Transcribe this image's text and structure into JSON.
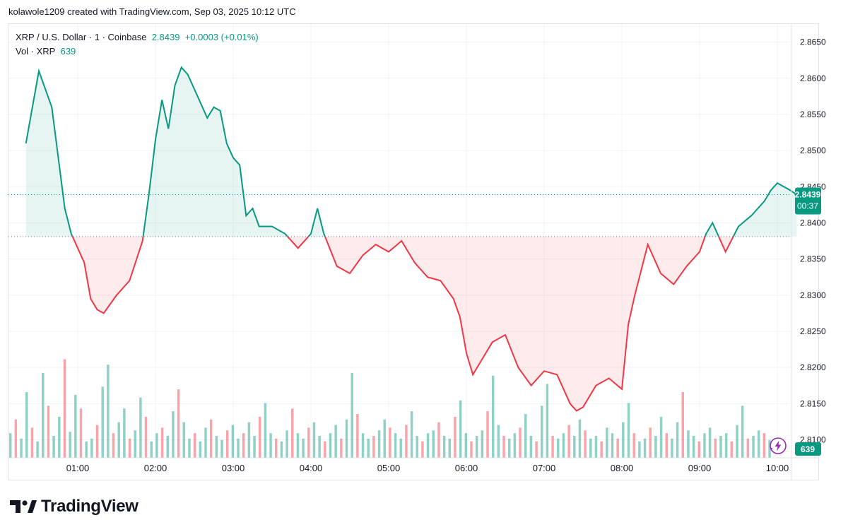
{
  "header": {
    "credit": "kolawole1209 created with TradingView.com, Sep 03, 2025 10:12 UTC"
  },
  "legend": {
    "symbol": "XRP / U.S. Dollar · 1 · Coinbase",
    "price": "2.8439",
    "change": "+0.0003 (+0.01%)",
    "vol_label": "Vol · XRP",
    "vol_value": "639"
  },
  "price_tag": {
    "value": "2.8439",
    "countdown": "00:37"
  },
  "volume_tag": {
    "value": "639"
  },
  "brand": {
    "name": "TradingView"
  },
  "colors": {
    "up": "#089981",
    "down": "#f23645",
    "grid": "#f0f3fa",
    "text": "#131722"
  },
  "chart_data": {
    "type": "area",
    "title": "XRP / U.S. Dollar · 1 · Coinbase",
    "ylim": [
      2.8075,
      2.8675
    ],
    "y_ticks": [
      "2.8100",
      "2.8150",
      "2.8200",
      "2.8250",
      "2.8300",
      "2.8350",
      "2.8400",
      "2.8450",
      "2.8500",
      "2.8550",
      "2.8600",
      "2.8650"
    ],
    "x_ticks": [
      "01:00",
      "02:00",
      "03:00",
      "04:00",
      "05:00",
      "06:00",
      "07:00",
      "08:00",
      "09:00",
      "10:00"
    ],
    "baseline": 2.8381,
    "last_price": 2.8439,
    "grid": true,
    "series": [
      {
        "name": "XRP / U.S. Dollar",
        "x": [
          "00:20",
          "00:30",
          "00:40",
          "00:45",
          "00:50",
          "00:55",
          "01:05",
          "01:10",
          "01:15",
          "01:20",
          "01:30",
          "01:40",
          "01:50",
          "01:55",
          "02:00",
          "02:05",
          "02:10",
          "02:15",
          "02:20",
          "02:25",
          "02:30",
          "02:35",
          "02:40",
          "02:45",
          "02:50",
          "02:55",
          "03:00",
          "03:05",
          "03:10",
          "03:15",
          "03:20",
          "03:30",
          "03:40",
          "03:50",
          "04:00",
          "04:05",
          "04:10",
          "04:20",
          "04:30",
          "04:40",
          "04:50",
          "05:00",
          "05:10",
          "05:20",
          "05:30",
          "05:40",
          "05:50",
          "05:55",
          "06:00",
          "06:05",
          "06:10",
          "06:20",
          "06:30",
          "06:40",
          "06:50",
          "07:00",
          "07:10",
          "07:20",
          "07:25",
          "07:30",
          "07:40",
          "07:50",
          "08:00",
          "08:05",
          "08:10",
          "08:20",
          "08:30",
          "08:40",
          "08:50",
          "09:00",
          "09:05",
          "09:10",
          "09:20",
          "09:30",
          "09:40",
          "09:45",
          "09:50",
          "09:55",
          "10:00",
          "10:05",
          "10:10",
          "10:15"
        ],
        "values": [
          2.851,
          2.861,
          2.856,
          2.849,
          2.842,
          2.8385,
          2.8345,
          2.8295,
          2.828,
          2.8275,
          2.83,
          2.832,
          2.8375,
          2.844,
          2.8515,
          2.857,
          2.853,
          2.859,
          2.8615,
          2.8605,
          2.8585,
          2.8565,
          2.8545,
          2.856,
          2.8555,
          2.851,
          2.849,
          2.848,
          2.841,
          2.842,
          2.8395,
          2.8395,
          2.8385,
          2.8365,
          2.8385,
          2.842,
          2.8385,
          2.834,
          2.833,
          2.8355,
          2.837,
          2.836,
          2.8375,
          2.8345,
          2.8325,
          2.832,
          2.8295,
          2.827,
          2.822,
          2.819,
          2.8205,
          2.8235,
          2.8245,
          2.82,
          2.8175,
          2.8195,
          2.819,
          2.815,
          2.814,
          2.8145,
          2.8175,
          2.8185,
          2.817,
          2.826,
          2.83,
          2.837,
          2.833,
          2.8315,
          2.834,
          2.836,
          2.8385,
          2.84,
          2.836,
          2.8395,
          2.841,
          2.842,
          2.843,
          2.8445,
          2.8455,
          2.845,
          2.8445,
          2.8439
        ]
      }
    ],
    "volume": {
      "label": "Vol · XRP",
      "last": 639,
      "max": 4000,
      "bars": [
        900,
        1400,
        700,
        2400,
        1100,
        600,
        3100,
        1900,
        800,
        1500,
        3600,
        950,
        2300,
        1800,
        600,
        700,
        1200,
        2600,
        3400,
        900,
        1300,
        1800,
        700,
        1000,
        2200,
        1500,
        600,
        900,
        1100,
        800,
        1700,
        2500,
        1300,
        700,
        900,
        600,
        1100,
        1400,
        800,
        650,
        1000,
        1200,
        700,
        900,
        1300,
        800,
        1500,
        2000,
        900,
        700,
        600,
        1000,
        1800,
        900,
        700,
        1100,
        1300,
        800,
        600,
        900,
        1200,
        700,
        1400,
        3100,
        1600,
        900,
        700,
        800,
        1000,
        1400,
        1100,
        900,
        700,
        1200,
        1700,
        800,
        600,
        900,
        1000,
        1300,
        800,
        700,
        1500,
        2100,
        900,
        600,
        800,
        1000,
        1700,
        3000,
        1200,
        800,
        700,
        900,
        1100,
        1600,
        800,
        600,
        1900,
        2700,
        800,
        700,
        900,
        1200,
        800,
        1400,
        1000,
        700,
        800,
        600,
        1100,
        900,
        700,
        1300,
        2000,
        900,
        600,
        700,
        1100,
        800,
        1500,
        900,
        700,
        1300,
        2400,
        1000,
        800,
        600,
        900,
        1100,
        700,
        800,
        900,
        600,
        1200,
        1900,
        700,
        800,
        1000,
        900,
        650
      ]
    }
  }
}
